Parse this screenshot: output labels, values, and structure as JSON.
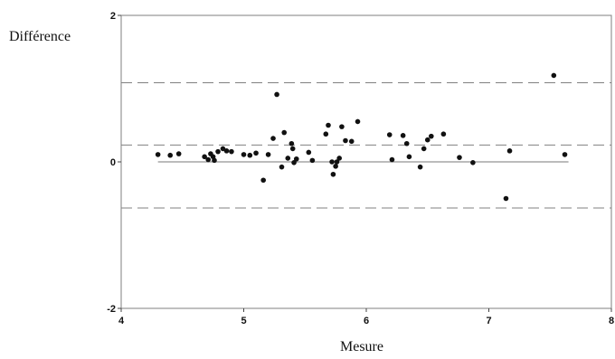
{
  "chart_data": {
    "type": "scatter",
    "title": "",
    "xlabel": "Mesure",
    "ylabel": "Différence",
    "xlim": [
      4,
      8
    ],
    "ylim": [
      -2,
      2
    ],
    "xticks": [
      "4",
      "5",
      "6",
      "7",
      "8"
    ],
    "yticks": [
      "2",
      "0",
      "-2"
    ],
    "grid": false,
    "reference_lines": {
      "mean_difference": 0.23,
      "upper_limit": 1.08,
      "lower_limit": -0.63,
      "zero_line": {
        "y": 0,
        "x_range": [
          4.3,
          7.65
        ]
      }
    },
    "points": [
      [
        4.3,
        0.1
      ],
      [
        4.4,
        0.09
      ],
      [
        4.47,
        0.11
      ],
      [
        4.68,
        0.07
      ],
      [
        4.71,
        0.03
      ],
      [
        4.73,
        0.11
      ],
      [
        4.75,
        0.07
      ],
      [
        4.76,
        0.02
      ],
      [
        4.79,
        0.14
      ],
      [
        4.83,
        0.18
      ],
      [
        4.86,
        0.15
      ],
      [
        4.9,
        0.14
      ],
      [
        5.0,
        0.1
      ],
      [
        5.05,
        0.09
      ],
      [
        5.1,
        0.12
      ],
      [
        5.16,
        -0.25
      ],
      [
        5.2,
        0.1
      ],
      [
        5.24,
        0.32
      ],
      [
        5.27,
        0.92
      ],
      [
        5.31,
        -0.07
      ],
      [
        5.33,
        0.4
      ],
      [
        5.36,
        0.05
      ],
      [
        5.39,
        0.25
      ],
      [
        5.4,
        0.18
      ],
      [
        5.41,
        -0.01
      ],
      [
        5.43,
        0.04
      ],
      [
        5.53,
        0.13
      ],
      [
        5.56,
        0.02
      ],
      [
        5.67,
        0.38
      ],
      [
        5.69,
        0.5
      ],
      [
        5.72,
        0.0
      ],
      [
        5.73,
        -0.17
      ],
      [
        5.75,
        -0.06
      ],
      [
        5.76,
        0.0
      ],
      [
        5.78,
        0.05
      ],
      [
        5.8,
        0.48
      ],
      [
        5.83,
        0.29
      ],
      [
        5.88,
        0.28
      ],
      [
        5.93,
        0.55
      ],
      [
        6.19,
        0.37
      ],
      [
        6.21,
        0.03
      ],
      [
        6.3,
        0.36
      ],
      [
        6.33,
        0.25
      ],
      [
        6.35,
        0.07
      ],
      [
        6.44,
        -0.07
      ],
      [
        6.47,
        0.18
      ],
      [
        6.5,
        0.3
      ],
      [
        6.53,
        0.35
      ],
      [
        6.63,
        0.38
      ],
      [
        6.76,
        0.06
      ],
      [
        6.87,
        -0.01
      ],
      [
        7.14,
        -0.5
      ],
      [
        7.17,
        0.15
      ],
      [
        7.53,
        1.18
      ],
      [
        7.62,
        0.1
      ]
    ]
  }
}
